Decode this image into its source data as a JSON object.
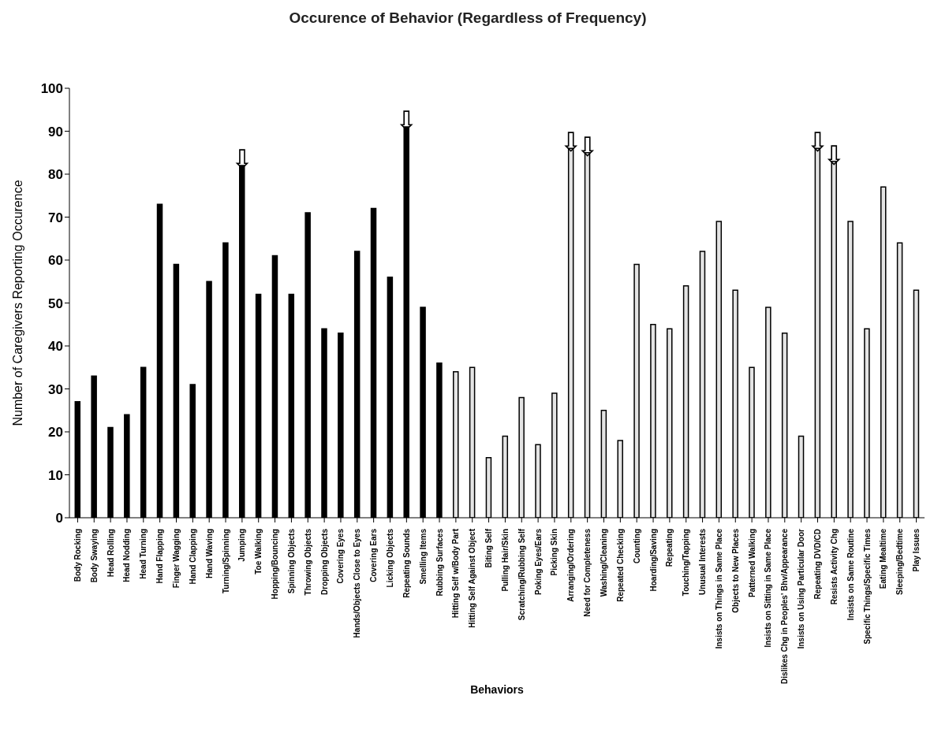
{
  "chart_data": {
    "type": "bar",
    "title": "Occurence of Behavior (Regardless of Frequency)",
    "xlabel": "Behaviors",
    "ylabel": "Number of Caregivers Reporting Occurence",
    "categories": [
      "Body Rocking",
      "Body Swaying",
      "Head Rolling",
      "Head Nodding",
      "Head Turning",
      "Hand Flapping",
      "Finger Wagging",
      "Hand Clapping",
      "Hand Waving",
      "Turning/Spinning",
      "Jumping",
      "Toe Walking",
      "Hopping/Bouncing",
      "Spinning Objects",
      "Throwing Objects",
      "Dropping Objects",
      "Covering Eyes",
      "Hands/Objects Close to Eyes",
      "Covering Ears",
      "Licking Objects",
      "Repeating Sounds",
      "Smelling Items",
      "Rubbing Surfaces",
      "Hitting Self w/Body Part",
      "Hitting Self Against Object",
      "Biting Self",
      "Pulling Hair/Skin",
      "Scratching/Rubbing Self",
      "Poking Eyes/Ears",
      "Picking Skin",
      "Arranging/Ordering",
      "Need for Completeness",
      "Washing/Cleaning",
      "Repeated Checking",
      "Counting",
      "Hoarding/Saving",
      "Repeating",
      "Touching/Tapping",
      "Unusual Interests",
      "Insists on Things in Same Place",
      "Objects to New Places",
      "Patterned Walking",
      "Insists on Sitting in Same Place",
      "Dislikes Chg in Peoples' Bhv/Appearance",
      "Insists on Using Particular Door",
      "Repeating DVD/CD",
      "Resists Activity Chg",
      "Insists on Same Routine",
      "Specific Things/Specific Times",
      "Eating Mealtime",
      "Sleeping/Bedtime",
      "Play Issues"
    ],
    "values": [
      27,
      33,
      21,
      24,
      35,
      73,
      59,
      31,
      55,
      64,
      82,
      52,
      61,
      52,
      71,
      44,
      43,
      62,
      72,
      56,
      91,
      49,
      36,
      34,
      35,
      14,
      19,
      28,
      17,
      29,
      86,
      85,
      25,
      18,
      59,
      45,
      44,
      54,
      62,
      69,
      53,
      35,
      49,
      43,
      19,
      86,
      83,
      69,
      44,
      77,
      64,
      53
    ],
    "colors": [
      "#000000",
      "#000000",
      "#000000",
      "#000000",
      "#000000",
      "#000000",
      "#000000",
      "#000000",
      "#000000",
      "#000000",
      "#000000",
      "#000000",
      "#000000",
      "#000000",
      "#000000",
      "#000000",
      "#000000",
      "#000000",
      "#000000",
      "#000000",
      "#000000",
      "#000000",
      "#000000",
      "#e4e4e4",
      "#e4e4e4",
      "#e4e4e4",
      "#e4e4e4",
      "#e4e4e4",
      "#e4e4e4",
      "#e4e4e4",
      "#e4e4e4",
      "#e4e4e4",
      "#e4e4e4",
      "#e4e4e4",
      "#e4e4e4",
      "#e4e4e4",
      "#e4e4e4",
      "#e4e4e4",
      "#e4e4e4",
      "#e4e4e4",
      "#e4e4e4",
      "#e4e4e4",
      "#e4e4e4",
      "#e4e4e4",
      "#e4e4e4",
      "#e4e4e4",
      "#e4e4e4",
      "#e4e4e4",
      "#e4e4e4",
      "#e4e4e4",
      "#e4e4e4",
      "#e4e4e4"
    ],
    "ylim": [
      0,
      100
    ],
    "yticks": [
      0,
      10,
      20,
      30,
      40,
      50,
      60,
      70,
      80,
      90,
      100
    ],
    "annotations": [
      {
        "text": "⇩",
        "x": "Jumping",
        "y": 82
      },
      {
        "text": "⇩",
        "x": "Repeating Sounds",
        "y": 91
      },
      {
        "text": "⇩",
        "x": "Arranging/Ordering",
        "y": 86
      },
      {
        "text": "⇩",
        "x": "Need for Completeness",
        "y": 85
      },
      {
        "text": "⇩",
        "x": "Repeating DVD/CD",
        "y": 86
      },
      {
        "text": "⇩",
        "x": "Resists Activity Chg",
        "y": 83
      }
    ]
  }
}
